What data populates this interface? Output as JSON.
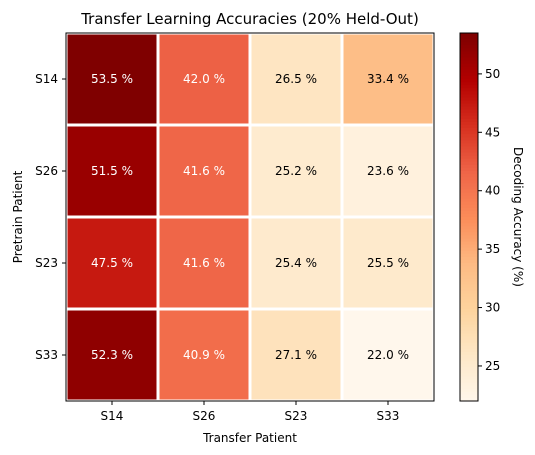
{
  "chart_data": {
    "type": "heatmap",
    "title": "Transfer Learning Accuracies (20% Held-Out)",
    "xlabel": "Transfer Patient",
    "ylabel": "Pretrain Patient",
    "x_categories": [
      "S14",
      "S26",
      "S23",
      "S33"
    ],
    "y_categories": [
      "S14",
      "S26",
      "S23",
      "S33"
    ],
    "values": [
      [
        53.5,
        42.0,
        26.5,
        33.4
      ],
      [
        51.5,
        41.6,
        25.2,
        23.6
      ],
      [
        47.5,
        41.6,
        25.4,
        25.5
      ],
      [
        52.3,
        40.9,
        27.1,
        22.0
      ]
    ],
    "value_suffix": " %",
    "colormap": "OrRd",
    "colorbar": {
      "label": "Decoding Accuracy (%)",
      "range": [
        22.0,
        53.5
      ],
      "ticks": [
        25,
        30,
        35,
        40,
        45,
        50
      ]
    },
    "cell_text_colors": {
      "dark": "#ffffff",
      "light": "#000000"
    }
  }
}
